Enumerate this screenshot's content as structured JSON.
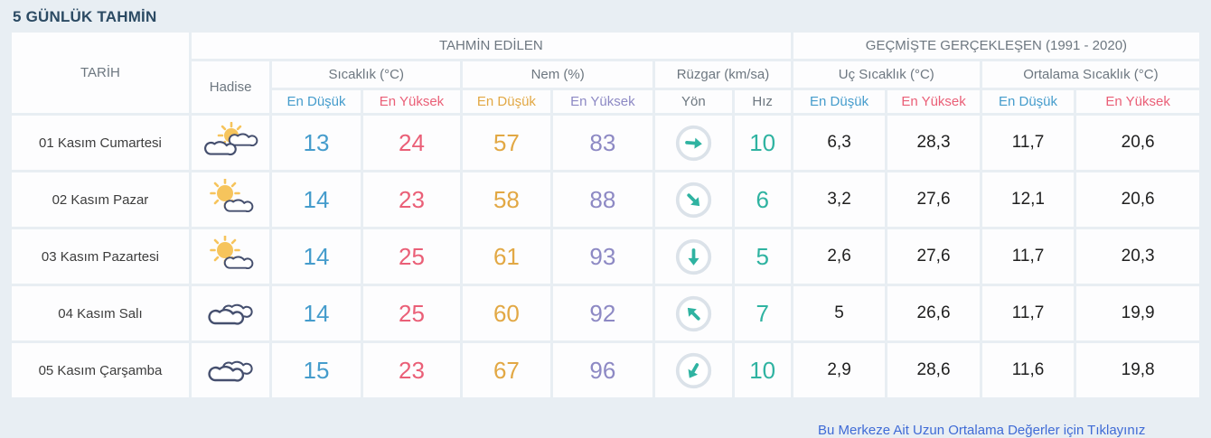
{
  "title": "5 GÜNLÜK TAHMİN",
  "table": {
    "group_predicted": "TAHMİN EDİLEN",
    "group_historical": "GEÇMİŞTE GERÇEKLEŞEN (1991 - 2020)",
    "col_date": "TARİH",
    "col_condition": "Hadise",
    "col_temperature": "Sıcaklık (°C)",
    "col_humidity": "Nem (%)",
    "col_wind": "Rüzgar (km/sa)",
    "col_extreme_temp": "Uç Sıcaklık (°C)",
    "col_avg_temp": "Ortalama Sıcaklık (°C)",
    "sub_min": "En Düşük",
    "sub_max": "En Yüksek",
    "sub_direction": "Yön",
    "sub_speed": "Hız"
  },
  "accent_colors": {
    "title": "#2b4a63",
    "temp_min": "#459ccc",
    "temp_max": "#ea5f77",
    "humidity_min": "#e2a844",
    "humidity_max": "#8d89c4",
    "wind": "#2fb3a1",
    "header_text": "#6d7780",
    "page_background": "#e8eef3",
    "link": "#3f6bd6"
  },
  "rows": [
    {
      "date": "01 Kasım Cumartesi",
      "condition_icon": "sun-behind-clouds-icon",
      "temp_min": "13",
      "temp_max": "24",
      "hum_min": "57",
      "hum_max": "83",
      "wind_dir_deg": 95,
      "wind_speed": "10",
      "hist_extreme_min": "6,3",
      "hist_extreme_max": "28,3",
      "hist_avg_min": "11,7",
      "hist_avg_max": "20,6"
    },
    {
      "date": "02 Kasım Pazar",
      "condition_icon": "sun-with-cloud-icon",
      "temp_min": "14",
      "temp_max": "23",
      "hum_min": "58",
      "hum_max": "88",
      "wind_dir_deg": 135,
      "wind_speed": "6",
      "hist_extreme_min": "3,2",
      "hist_extreme_max": "27,6",
      "hist_avg_min": "12,1",
      "hist_avg_max": "20,6"
    },
    {
      "date": "03 Kasım Pazartesi",
      "condition_icon": "sun-with-cloud-icon",
      "temp_min": "14",
      "temp_max": "25",
      "hum_min": "61",
      "hum_max": "93",
      "wind_dir_deg": 180,
      "wind_speed": "5",
      "hist_extreme_min": "2,6",
      "hist_extreme_max": "27,6",
      "hist_avg_min": "11,7",
      "hist_avg_max": "20,3"
    },
    {
      "date": "04 Kasım Salı",
      "condition_icon": "clouds-icon",
      "temp_min": "14",
      "temp_max": "25",
      "hum_min": "60",
      "hum_max": "92",
      "wind_dir_deg": 315,
      "wind_speed": "7",
      "hist_extreme_min": "5",
      "hist_extreme_max": "26,6",
      "hist_avg_min": "11,7",
      "hist_avg_max": "19,9"
    },
    {
      "date": "05 Kasım Çarşamba",
      "condition_icon": "clouds-icon",
      "temp_min": "15",
      "temp_max": "23",
      "hum_min": "67",
      "hum_max": "96",
      "wind_dir_deg": 210,
      "wind_speed": "10",
      "hist_extreme_min": "2,9",
      "hist_extreme_max": "28,6",
      "hist_avg_min": "11,6",
      "hist_avg_max": "19,8"
    }
  ],
  "footer": {
    "link_label": "Bu Merkeze Ait Uzun Ortalama Değerler için Tıklayınız"
  }
}
